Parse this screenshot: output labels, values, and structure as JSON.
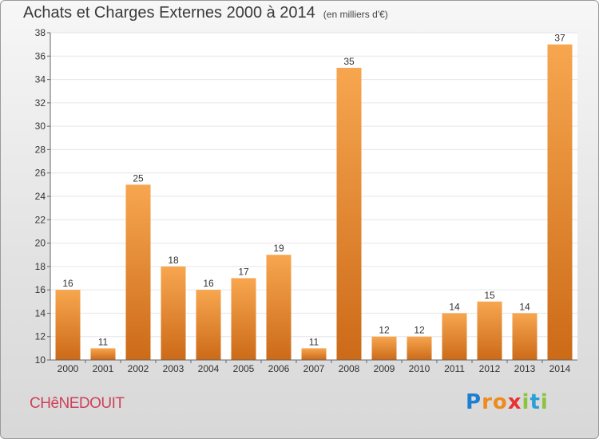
{
  "header": {
    "title": "Achats et Charges Externes 2000 à 2014",
    "subtitle": "(en milliers d'€)"
  },
  "footer": {
    "town": "CHêNEDOUIT",
    "logo_letters": [
      "P",
      "r",
      "o",
      "x",
      "i",
      "t",
      "i"
    ],
    "logo_colors": [
      "#1e7fd0",
      "#f08a1c",
      "#f08a1c",
      "#e8322f",
      "#8bc43f",
      "#2a9fd8",
      "#8bc43f"
    ]
  },
  "colors": {
    "bar_light": "#f7a64f",
    "bar_dark": "#cc6a18",
    "axis": "#666666",
    "grid": "#e6e6e6"
  },
  "chart_data": {
    "type": "bar",
    "categories": [
      "2000",
      "2001",
      "2002",
      "2003",
      "2004",
      "2005",
      "2006",
      "2007",
      "2008",
      "2009",
      "2010",
      "2011",
      "2012",
      "2013",
      "2014"
    ],
    "values": [
      16,
      11,
      25,
      18,
      16,
      17,
      19,
      11,
      35,
      12,
      12,
      14,
      15,
      14,
      37
    ],
    "title": "Achats et Charges Externes 2000 à 2014",
    "xlabel": "",
    "ylabel": "",
    "ylim": [
      10,
      38
    ],
    "yticks": [
      10,
      12,
      14,
      16,
      18,
      20,
      22,
      24,
      26,
      28,
      30,
      32,
      34,
      36,
      38
    ],
    "grid": true,
    "data_labels": true
  }
}
